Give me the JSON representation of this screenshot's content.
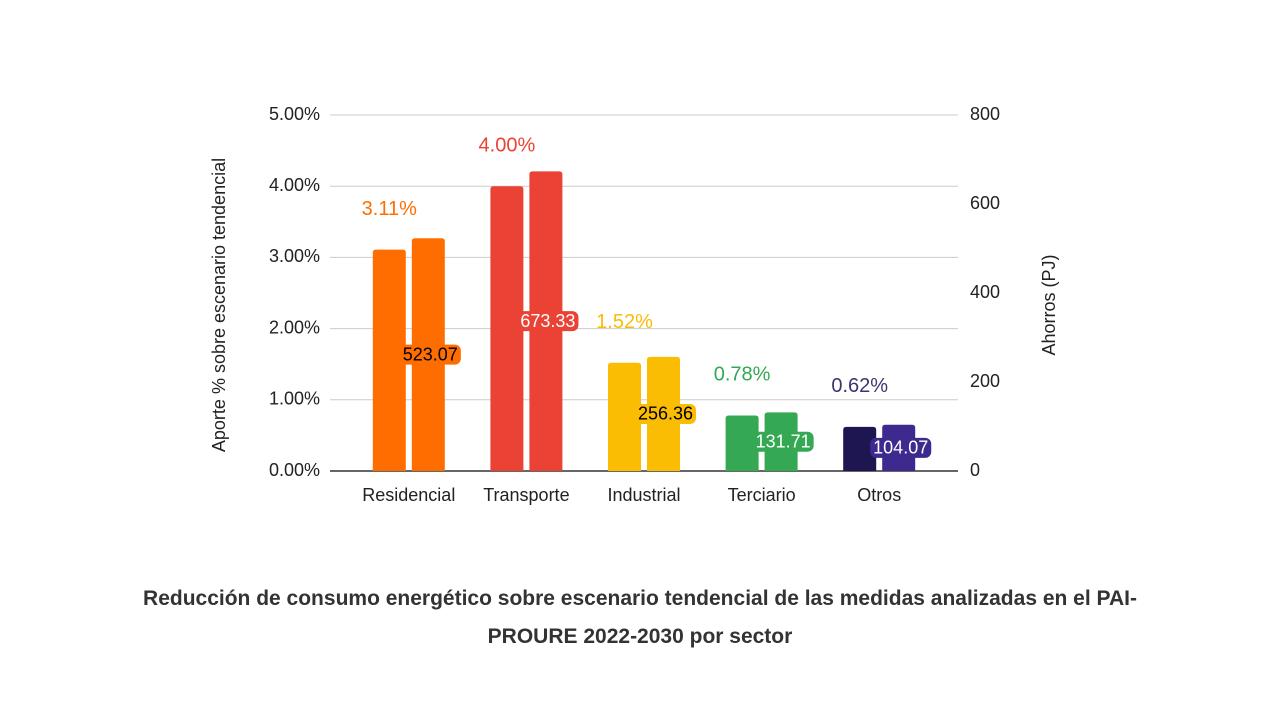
{
  "chart_data": {
    "type": "bar",
    "title": "Reducción de consumo energético sobre escenario tendencial  de las medidas analizadas en el PAI-PROURE 2022-2030 por sector",
    "ylabel": "Aporte % sobre escenario tendencial",
    "y2label": "Ahorros (PJ)",
    "categories": [
      "Residencial",
      "Transporte",
      "Industrial",
      "Terciario",
      "Otros"
    ],
    "series": [
      {
        "colors": [
          "#ff6d01",
          "#ea4335",
          "#fbbc04",
          "#34a853",
          "#1e1650"
        ],
        "values": [
          3.11,
          4.0,
          1.52,
          0.78,
          0.62
        ],
        "value_labels": [
          "3.11%",
          "4.00%",
          "1.52%",
          "0.78%",
          "0.62%"
        ],
        "label_colors": [
          "#ff6d01",
          "#ea4335",
          "#fbbc04",
          "#34a853",
          "#3b3570"
        ]
      },
      {
        "axis": "y2",
        "colors": [
          "#ff6d01",
          "#ea4335",
          "#fbbc04",
          "#34a853",
          "#3e2a8e"
        ],
        "values": [
          523.07,
          673.33,
          256.36,
          131.71,
          104.07
        ],
        "label_colors": [
          "#000000",
          "#ffffff",
          "#000000",
          "#ffffff",
          "#ffffff"
        ]
      }
    ],
    "ylim": [
      0,
      5
    ],
    "yticks": [
      {
        "value": 0,
        "label": "0.00%"
      },
      {
        "value": 1,
        "label": "1.00%"
      },
      {
        "value": 2,
        "label": "2.00%"
      },
      {
        "value": 3,
        "label": "3.00%"
      },
      {
        "value": 4,
        "label": "4.00%"
      },
      {
        "value": 5,
        "label": "5.00%"
      }
    ],
    "y2lim": [
      0,
      800
    ],
    "y2ticks": [
      0,
      200,
      400,
      600,
      800
    ],
    "grid": true
  }
}
